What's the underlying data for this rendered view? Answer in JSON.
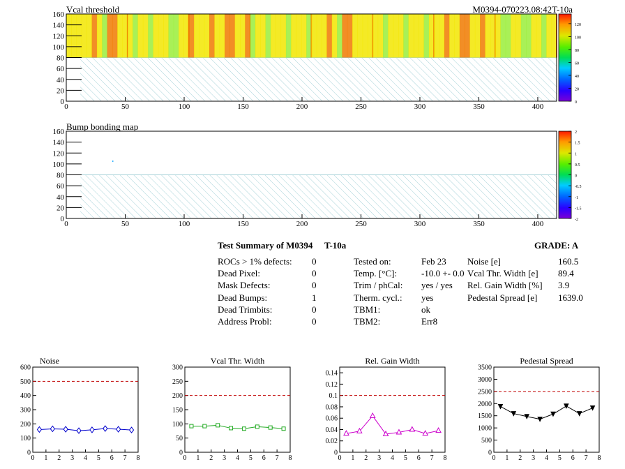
{
  "header": {
    "map_title": "Vcal threshold",
    "module_id": "M0394-070223.08:42T-10a",
    "bump_title": "Bump bonding map"
  },
  "colors": {
    "threshold_low": "#9aed3a",
    "threshold_mid": "#f2e600",
    "threshold_high": "#f07a00",
    "hatch": "#a8d3d9",
    "cut_line": "#c00000",
    "noise": "#0000cc",
    "vcal": "#22aa22",
    "gain": "#cc00cc",
    "pedestal": "#000000"
  },
  "maps": {
    "xticks": [
      "0",
      "50",
      "100",
      "150",
      "200",
      "250",
      "300",
      "350",
      "400"
    ],
    "yticks": [
      "0",
      "20",
      "40",
      "60",
      "80",
      "100",
      "120",
      "140",
      "160"
    ],
    "threshold_palette_ticks": [
      "0",
      "20",
      "40",
      "60",
      "80",
      "100",
      "120"
    ],
    "bump_palette_ticks": [
      "-2",
      "-1.5",
      "-1",
      "-0.5",
      "0",
      "0.5",
      "1",
      "1.5",
      "2"
    ]
  },
  "summary": {
    "title": "Test Summary of M0394",
    "temp_tag": "T-10a",
    "grade": "GRADE:  A",
    "col1": [
      {
        "label": "ROCs > 1% defects:",
        "value": "0"
      },
      {
        "label": "Dead Pixel:",
        "value": "0"
      },
      {
        "label": "Mask Defects:",
        "value": "0"
      },
      {
        "label": "Dead Bumps:",
        "value": "1"
      },
      {
        "label": "Dead Trimbits:",
        "value": "0"
      },
      {
        "label": "Address Probl:",
        "value": "0"
      }
    ],
    "col2": [
      {
        "label": "Tested on:",
        "value": "Feb 23"
      },
      {
        "label": "Temp. [°C]:",
        "value": "-10.0 +- 0.0"
      },
      {
        "label": "Trim / phCal:",
        "value": "yes / yes"
      },
      {
        "label": "Therm. cycl.:",
        "value": "yes"
      },
      {
        "label": "TBM1:",
        "value": "ok"
      },
      {
        "label": "TBM2:",
        "value": "Err8"
      }
    ],
    "col3": [
      {
        "label": "Noise [e]",
        "value": "160.5"
      },
      {
        "label": "Vcal Thr. Width [e]",
        "value": "89.4"
      },
      {
        "label": "Rel. Gain Width [%]",
        "value": "3.9"
      },
      {
        "label": "Pedestal Spread [e]",
        "value": "1639.0"
      }
    ]
  },
  "chart_data": [
    {
      "type": "heatmap",
      "title": "Vcal threshold",
      "xlim": [
        0,
        416
      ],
      "ylim": [
        0,
        160
      ],
      "filled_rows": [
        80,
        160
      ],
      "zlim": [
        0,
        135
      ],
      "typical_value": 100,
      "note_region": "rows 0-80 hatched (no data)"
    },
    {
      "type": "heatmap",
      "title": "Bump bonding map",
      "xlim": [
        0,
        416
      ],
      "ylim": [
        0,
        160
      ],
      "zlim": [
        -2,
        2
      ],
      "points": [
        {
          "x": 39,
          "y": 106
        }
      ]
    },
    {
      "type": "line",
      "title": "Noise",
      "x": [
        0.5,
        1.5,
        2.5,
        3.5,
        4.5,
        5.5,
        6.5,
        7.5
      ],
      "values": [
        160,
        165,
        162,
        152,
        158,
        167,
        162,
        157
      ],
      "errors": [
        15,
        15,
        15,
        15,
        15,
        15,
        15,
        15
      ],
      "xlim": [
        0,
        8
      ],
      "ylim": [
        0,
        600
      ],
      "yticks": [
        "0",
        "100",
        "200",
        "300",
        "400",
        "500",
        "600"
      ],
      "xticks": [
        "0",
        "1",
        "2",
        "3",
        "4",
        "5",
        "6",
        "7",
        "8"
      ],
      "cut": 500,
      "marker": "diamond"
    },
    {
      "type": "line",
      "title": "Vcal Thr. Width",
      "x": [
        0.5,
        1.5,
        2.5,
        3.5,
        4.5,
        5.5,
        6.5,
        7.5
      ],
      "values": [
        92,
        92,
        95,
        85,
        83,
        90,
        87,
        83
      ],
      "xlim": [
        0,
        8
      ],
      "ylim": [
        0,
        300
      ],
      "yticks": [
        "0",
        "50",
        "100",
        "150",
        "200",
        "250",
        "300"
      ],
      "xticks": [
        "0",
        "1",
        "2",
        "3",
        "4",
        "5",
        "6",
        "7",
        "8"
      ],
      "cut": 200,
      "marker": "square"
    },
    {
      "type": "line",
      "title": "Rel. Gain Width",
      "x": [
        0.5,
        1.5,
        2.5,
        3.5,
        4.5,
        5.5,
        6.5,
        7.5
      ],
      "values": [
        0.033,
        0.037,
        0.064,
        0.032,
        0.035,
        0.04,
        0.033,
        0.038
      ],
      "xlim": [
        0,
        8
      ],
      "ylim": [
        0,
        0.15
      ],
      "yticks": [
        "0",
        "0.02",
        "0.04",
        "0.06",
        "0.08",
        "0.1",
        "0.12",
        "0.14"
      ],
      "xticks": [
        "0",
        "1",
        "2",
        "3",
        "4",
        "5",
        "6",
        "7",
        "8"
      ],
      "cut": 0.1,
      "marker": "triangle"
    },
    {
      "type": "line",
      "title": "Pedestal Spread",
      "x": [
        0.5,
        1.5,
        2.5,
        3.5,
        4.5,
        5.5,
        6.5,
        7.5
      ],
      "values": [
        1880,
        1590,
        1470,
        1360,
        1570,
        1900,
        1590,
        1820
      ],
      "xlim": [
        0,
        8
      ],
      "ylim": [
        0,
        3500
      ],
      "yticks": [
        "0",
        "500",
        "1000",
        "1500",
        "2000",
        "2500",
        "3000",
        "3500"
      ],
      "xticks": [
        "0",
        "1",
        "2",
        "3",
        "4",
        "5",
        "6",
        "7",
        "8"
      ],
      "cut": 2500,
      "marker": "star"
    }
  ]
}
